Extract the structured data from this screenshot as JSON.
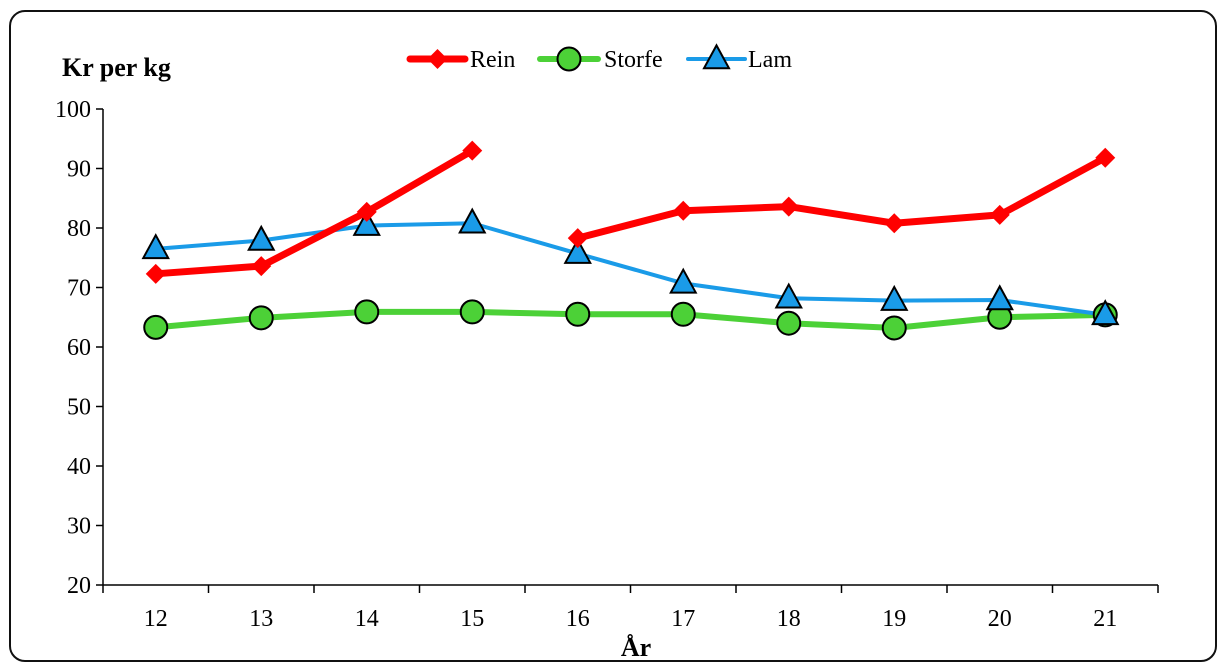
{
  "chart_data": {
    "type": "line",
    "ylabel": "Kr per kg",
    "xlabel": "År",
    "ylim": [
      20,
      100
    ],
    "yticks": [
      "100",
      "90",
      "80",
      "70",
      "60",
      "50",
      "40",
      "30",
      "20"
    ],
    "categories": [
      "12",
      "13",
      "14",
      "15",
      "16",
      "17",
      "18",
      "19",
      "20",
      "21"
    ],
    "grid": false,
    "legend_position": "top-center",
    "series": [
      {
        "name": "Rein",
        "color": "#ff0000",
        "marker": "diamond",
        "values": [
          72.3,
          73.6,
          82.7,
          93.0,
          78.3,
          82.9,
          83.6,
          80.8,
          82.2,
          91.8
        ],
        "gap_after_index": 3
      },
      {
        "name": "Storfe",
        "color": "#4cd137",
        "marker": "circle",
        "values": [
          63.3,
          64.9,
          65.9,
          65.9,
          65.5,
          65.5,
          64.0,
          63.2,
          65.0,
          65.4
        ]
      },
      {
        "name": "Lam",
        "color": "#1a9be8",
        "marker": "triangle",
        "values": [
          76.5,
          77.9,
          80.4,
          80.8,
          75.7,
          70.7,
          68.2,
          67.8,
          67.9,
          65.4
        ]
      }
    ]
  }
}
